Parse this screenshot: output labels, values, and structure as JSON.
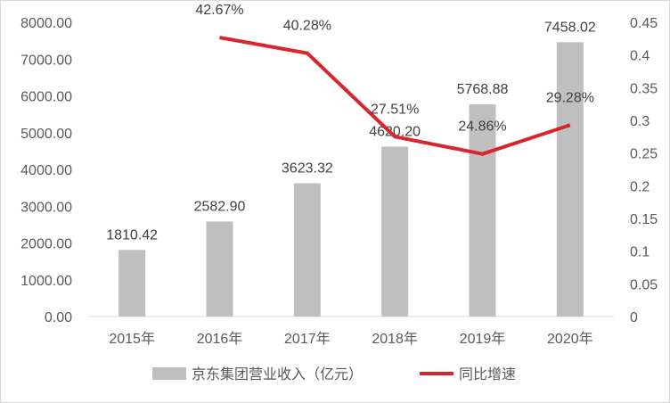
{
  "chart_data": {
    "type": "bar",
    "categories": [
      "2015年",
      "2016年",
      "2017年",
      "2018年",
      "2019年",
      "2020年"
    ],
    "series": [
      {
        "name": "京东集团营业收入（亿元）",
        "type": "bar",
        "axis": "left",
        "color": "#bfbfbf",
        "values": [
          1810.42,
          2582.9,
          3623.32,
          4620.2,
          5768.88,
          7458.02
        ],
        "labels": [
          "1810.42",
          "2582.90",
          "3623.32",
          "4620.20",
          "5768.88",
          "7458.02"
        ]
      },
      {
        "name": "同比增速",
        "type": "line",
        "axis": "right",
        "color": "#d9262c",
        "values": [
          null,
          0.4267,
          0.4028,
          0.2751,
          0.2486,
          0.2928
        ],
        "labels": [
          null,
          "42.67%",
          "40.28%",
          "27.51%",
          "24.86%",
          "29.28%"
        ]
      }
    ],
    "y_left": {
      "range": [
        0,
        8000
      ],
      "ticks": [
        "0.00",
        "1000.00",
        "2000.00",
        "3000.00",
        "4000.00",
        "5000.00",
        "6000.00",
        "7000.00",
        "8000.00"
      ]
    },
    "y_right": {
      "range": [
        0,
        0.45
      ],
      "ticks": [
        "0",
        "0.05",
        "0.1",
        "0.15",
        "0.2",
        "0.25",
        "0.3",
        "0.35",
        "0.4",
        "0.45"
      ]
    },
    "grid": false,
    "legend_position": "bottom"
  }
}
